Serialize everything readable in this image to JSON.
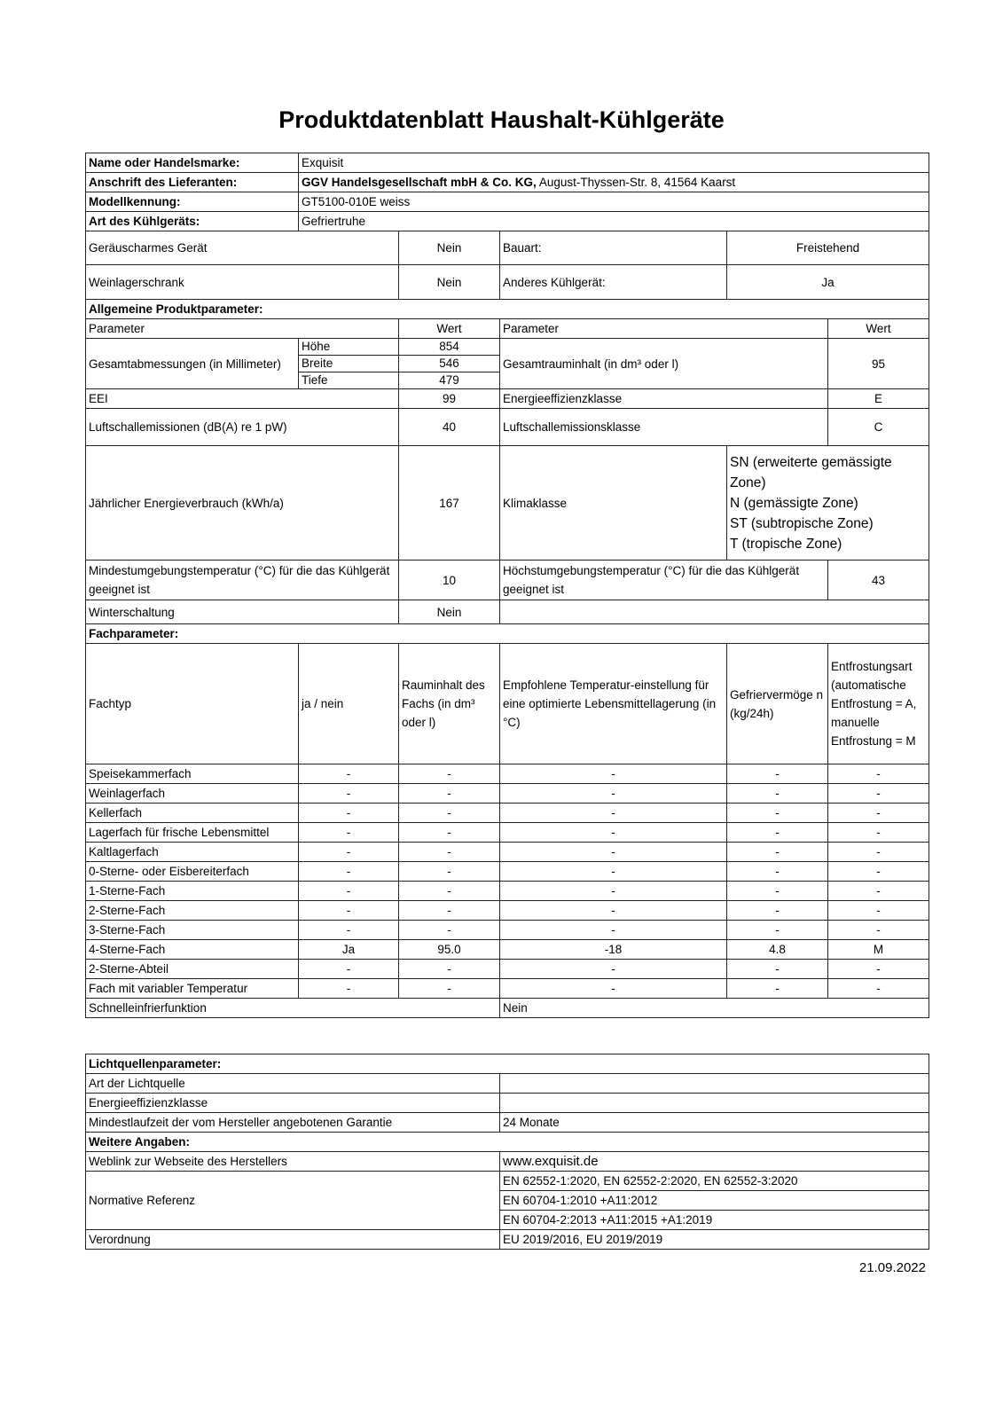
{
  "title": "Produktdatenblatt Haushalt-Kühlgeräte",
  "header": {
    "name_label": "Name oder Handelsmarke:",
    "name_value": "Exquisit",
    "address_label": "Anschrift des Lieferanten:",
    "address_company": "GGV Handelsgesellschaft mbH & Co. KG,",
    "address_street": " August-Thyssen-Str. 8, 41564 Kaarst",
    "model_label": "Modellkennung:",
    "model_value": "GT5100-010E weiss",
    "type_label": "Art des Kühlgeräts:",
    "type_value": "Gefriertruhe"
  },
  "device": {
    "quiet_label": "Geräuscharmes Gerät",
    "quiet_value": "Nein",
    "build_label": "Bauart:",
    "build_value": "Freistehend",
    "wine_label": "Weinlagerschrank",
    "wine_value": "Nein",
    "other_label": "Anderes Kühlgerät:",
    "other_value": "Ja"
  },
  "general": {
    "heading": "Allgemeine Produktparameter:",
    "param_header": "Parameter",
    "value_header": "Wert",
    "dimensions_label": "Gesamtabmessungen (in Millimeter)",
    "height_label": "Höhe",
    "height_value": "854",
    "width_label": "Breite",
    "width_value": "546",
    "depth_label": "Tiefe",
    "depth_value": "479",
    "volume_label": "Gesamtrauminhalt (in dm³ oder l)",
    "volume_value": "95",
    "eei_label": "EEI",
    "eei_value": "99",
    "eclass_label": "Energieeffizienzklasse",
    "eclass_value": "E",
    "noise_label": "Luftschallemissionen (dB(A) re 1 pW)",
    "noise_value": "40",
    "noiseclass_label": "Luftschallemissionsklasse",
    "noiseclass_value": "C",
    "energy_label": "Jährlicher Energieverbrauch (kWh/a)",
    "energy_value": "167",
    "climate_label": "Klimaklasse",
    "climate_values": [
      "SN (erweiterte gemässigte Zone)",
      "N (gemässigte Zone)",
      "ST (subtropische Zone)",
      "T (tropische Zone)"
    ],
    "mintemp_label": "Mindestumgebungstemperatur (°C) für die das Kühlgerät geeignet ist",
    "mintemp_value": "10",
    "maxtemp_label": "Höchstumgebungstemperatur (°C) für die das Kühlgerät geeignet ist",
    "maxtemp_value": "43",
    "winter_label": "Winterschaltung",
    "winter_value": "Nein"
  },
  "compartments": {
    "heading": "Fachparameter:",
    "columns": [
      "Fachtyp",
      "ja / nein",
      "Rauminhalt des Fachs (in dm³ oder l)",
      "Empfohlene Temperatur-einstellung für eine optimierte Lebensmittellagerung (in °C)",
      "Gefriervermöge n (kg/24h)",
      "Entfrostungsart (automatische Entfrostung = A, manuelle Entfrostung = M"
    ],
    "rows": [
      [
        "Speisekammerfach",
        "-",
        "-",
        "-",
        "-",
        "-"
      ],
      [
        "Weinlagerfach",
        "-",
        "-",
        "-",
        "-",
        "-"
      ],
      [
        "Kellerfach",
        "-",
        "-",
        "-",
        "-",
        "-"
      ],
      [
        "Lagerfach für frische Lebensmittel",
        "-",
        "-",
        "-",
        "-",
        "-"
      ],
      [
        "Kaltlagerfach",
        "-",
        "-",
        "-",
        "-",
        "-"
      ],
      [
        "0-Sterne- oder Eisbereiterfach",
        "-",
        "-",
        "-",
        "-",
        "-"
      ],
      [
        "1-Sterne-Fach",
        "-",
        "-",
        "-",
        "-",
        "-"
      ],
      [
        "2-Sterne-Fach",
        "-",
        "-",
        "-",
        "-",
        "-"
      ],
      [
        "3-Sterne-Fach",
        "-",
        "-",
        "-",
        "-",
        "-"
      ],
      [
        "4-Sterne-Fach",
        "Ja",
        "95.0",
        "-18",
        "4.8",
        "M"
      ],
      [
        "2-Sterne-Abteil",
        "-",
        "-",
        "-",
        "-",
        "-"
      ],
      [
        "Fach mit variabler Temperatur",
        "-",
        "-",
        "-",
        "-",
        "-"
      ]
    ],
    "quickfreeze_label": "Schnelleinfrierfunktion",
    "quickfreeze_value": "Nein"
  },
  "light": {
    "heading": "Lichtquellenparameter:",
    "source_label": "Art der Lichtquelle",
    "source_value": "",
    "eclass_label": "Energieeffizienzklasse",
    "eclass_value": "",
    "warranty_label": "Mindestlaufzeit der vom Hersteller angebotenen Garantie",
    "warranty_value": "24 Monate"
  },
  "more": {
    "heading": "Weitere Angaben:",
    "web_label": "Weblink zur Webseite des Herstellers",
    "web_value": "www.exquisit.de",
    "norm_label": "Normative Referenz",
    "norm_values": [
      "EN 62552-1:2020, EN 62552-2:2020, EN 62552-3:2020",
      "EN 60704-1:2010 +A11:2012",
      "EN 60704-2:2013 +A11:2015 +A1:2019"
    ],
    "reg_label": "Verordnung",
    "reg_value": "EU 2019/2016, EU 2019/2019"
  },
  "date": "21.09.2022"
}
